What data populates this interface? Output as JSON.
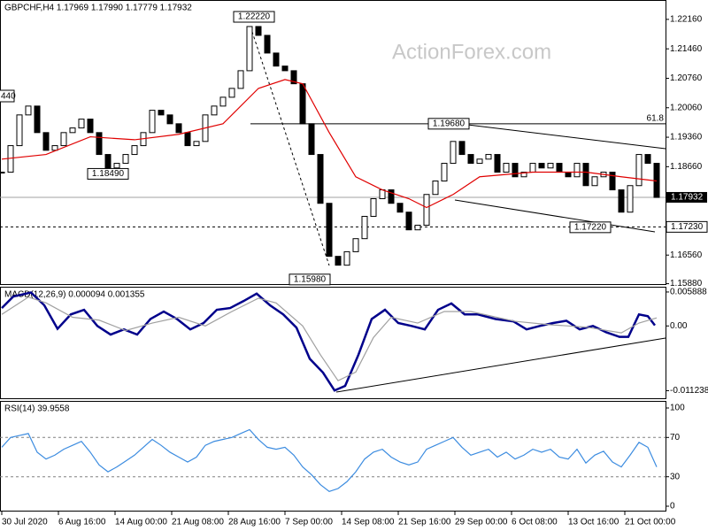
{
  "watermark": "ActionForex.com",
  "edge_label": "440",
  "chart_data": [
    {
      "type": "line",
      "title": "GBPCHF,H4  1.17969 1.17990 1.17779 1.17932",
      "ylim": [
        1.1585,
        1.2262
      ],
      "yticks": [
        {
          "value": 1.2216,
          "label": "1.22160"
        },
        {
          "value": 1.2146,
          "label": "1.21460"
        },
        {
          "value": 1.2076,
          "label": "1.20760"
        },
        {
          "value": 1.2006,
          "label": "1.20060"
        },
        {
          "value": 1.1936,
          "label": "1.19360"
        },
        {
          "value": 1.1866,
          "label": "1.18660"
        },
        {
          "value": 1.1656,
          "label": "1.16560"
        },
        {
          "value": 1.1588,
          "label": "1.15880"
        }
      ],
      "series": [
        {
          "color": "#000000",
          "values": [
            1.1853,
            1.1916,
            1.1989,
            1.201,
            1.1947,
            1.1905,
            1.1916,
            1.1947,
            1.1958,
            1.1979,
            1.1947,
            1.1895,
            1.1863,
            1.1874,
            1.1895,
            1.1916,
            1.1947,
            1.2,
            1.1989,
            1.1968,
            1.1947,
            1.1916,
            1.1926,
            1.1989,
            1.201,
            1.2031,
            1.2052,
            1.2094,
            1.2199,
            1.2178,
            1.2136,
            1.2105,
            1.2094,
            1.2063,
            1.1968,
            1.1895,
            1.1779,
            1.1653,
            1.1632,
            1.1664,
            1.1695,
            1.1748,
            1.179,
            1.1811,
            1.1779,
            1.1758,
            1.1716,
            1.1727,
            1.18,
            1.1832,
            1.1874,
            1.1926,
            1.1895,
            1.1874,
            1.1884,
            1.1895,
            1.1853,
            1.1874,
            1.1842,
            1.1853,
            1.1874,
            1.1863,
            1.1874,
            1.1853,
            1.1842,
            1.1874,
            1.1821,
            1.1842,
            1.1853,
            1.1811,
            1.1758,
            1.1821,
            1.1895,
            1.1874,
            1.1793
          ]
        },
        {
          "color": "#e00000",
          "x": [
            0,
            5,
            10,
            15,
            20,
            25,
            29,
            32,
            34,
            37,
            40,
            43,
            46,
            48,
            51,
            54,
            60,
            66,
            70,
            74
          ],
          "values": [
            1.1884,
            1.1895,
            1.1937,
            1.193,
            1.1943,
            1.1968,
            1.2052,
            1.2073,
            1.2063,
            1.1947,
            1.1842,
            1.1811,
            1.179,
            1.1769,
            1.18,
            1.1842,
            1.1853,
            1.1853,
            1.1842,
            1.1832
          ]
        }
      ],
      "annotations": [
        {
          "x": 28.5,
          "value": 1.2222,
          "label": "1.22220"
        },
        {
          "x": 12,
          "value": 1.1849,
          "label": "1.18490"
        },
        {
          "x": 50.5,
          "value": 1.1968,
          "label": "1.19680"
        },
        {
          "x": 66.5,
          "value": 1.1722,
          "label": "1.17220"
        },
        {
          "x": 34.8,
          "value": 1.1598,
          "label": "1.15980"
        }
      ],
      "fib": {
        "value": 1.1968,
        "label": "61.8"
      },
      "last_price": {
        "value": 1.17932,
        "label": "1.17932"
      },
      "level": {
        "value": 1.1723,
        "label": "1.17230"
      }
    },
    {
      "type": "line",
      "title": "MACD(12,26,9) 0.000094 0.001355",
      "ylim": [
        -0.0127,
        0.0068
      ],
      "yticks": [
        0.005888,
        {
          "value": 0,
          "label": "0.00"
        },
        -0.011238
      ],
      "series": [
        {
          "color": "#00008b",
          "x": [
            0,
            1.3,
            3.3,
            4.8,
            6.3,
            7.8,
            9.3,
            10.8,
            12.3,
            13.8,
            15.3,
            16.8,
            18.3,
            19.8,
            21.3,
            22.8,
            24.3,
            25.8,
            27.3,
            28.8,
            30.3,
            31.8,
            33.3,
            34.8,
            36.3,
            37.6,
            38.8,
            40.3,
            41.8,
            43.3,
            44.8,
            46.3,
            47.8,
            49.3,
            50.8,
            52.3,
            53.8,
            55.8,
            57.8,
            59.3,
            60.8,
            62.3,
            63.8,
            65.3,
            66.8,
            68.3,
            69.8,
            70.8,
            72,
            73,
            73.8
          ],
          "values": [
            0.0031,
            0.0051,
            0.0058,
            0.0036,
            -0.0005,
            0.002,
            0.0028,
            0.0,
            -0.0015,
            -0.0006,
            -0.0015,
            0.0012,
            0.0025,
            0.0012,
            -0.0006,
            0.0005,
            0.0028,
            0.0031,
            0.0043,
            0.0056,
            0.0036,
            0.002,
            -0.0003,
            -0.0057,
            -0.0081,
            -0.0112,
            -0.0104,
            -0.005,
            0.0012,
            0.0028,
            0.0005,
            0.0,
            -0.0006,
            0.0028,
            0.0039,
            0.002,
            0.002,
            0.0012,
            0.0008,
            -0.0006,
            0.0,
            0.0005,
            0.0009,
            -0.0006,
            0.0,
            -0.0011,
            -0.0019,
            -0.0019,
            0.002,
            0.0017,
            0.0001
          ]
        },
        {
          "color": "#a0a0a0",
          "x": [
            0,
            3,
            5,
            8,
            11,
            14,
            17,
            20,
            23,
            26,
            29,
            31,
            34,
            36,
            38,
            40,
            42,
            44,
            47,
            50,
            53,
            58,
            62,
            66,
            70,
            72,
            74
          ],
          "values": [
            0.002,
            0.005,
            0.004,
            0.0015,
            0.001,
            -0.0008,
            0.0005,
            0.0015,
            0.0,
            0.0025,
            0.0048,
            0.004,
            0.0,
            -0.005,
            -0.0095,
            -0.008,
            -0.002,
            0.0015,
            0.0005,
            0.0025,
            0.0025,
            0.0008,
            0.0002,
            -0.0002,
            -0.0012,
            0.0005,
            0.0014
          ]
        }
      ]
    },
    {
      "type": "line",
      "title": "RSI(14) 39.9558",
      "ylim": [
        -5.4,
        107.2
      ],
      "yticks": [
        100,
        70,
        30,
        0
      ],
      "dashed_levels": [
        70,
        30
      ],
      "series": [
        {
          "color": "#3c8ce0",
          "values": [
            60,
            70,
            72,
            74,
            55,
            48,
            52,
            58,
            62,
            66,
            55,
            42,
            35,
            40,
            46,
            52,
            60,
            68,
            62,
            55,
            50,
            45,
            50,
            62,
            66,
            68,
            70,
            74,
            78,
            68,
            60,
            58,
            60,
            52,
            40,
            32,
            22,
            15,
            18,
            25,
            35,
            48,
            55,
            58,
            50,
            45,
            42,
            45,
            58,
            62,
            66,
            70,
            60,
            52,
            55,
            58,
            50,
            55,
            48,
            52,
            58,
            55,
            58,
            50,
            48,
            58,
            44,
            52,
            56,
            45,
            40,
            52,
            65,
            60,
            40
          ]
        }
      ],
      "xticklabels": [
        "30 Jul 2020",
        "6 Aug 16:00",
        "14 Aug 00:00",
        "21 Aug 08:00",
        "28 Aug 16:00",
        "7 Sep 00:00",
        "14 Sep 08:00",
        "21 Sep 16:00",
        "29 Sep 00:00",
        "6 Oct 08:00",
        "13 Oct 16:00",
        "21 Oct 00:00"
      ]
    }
  ]
}
